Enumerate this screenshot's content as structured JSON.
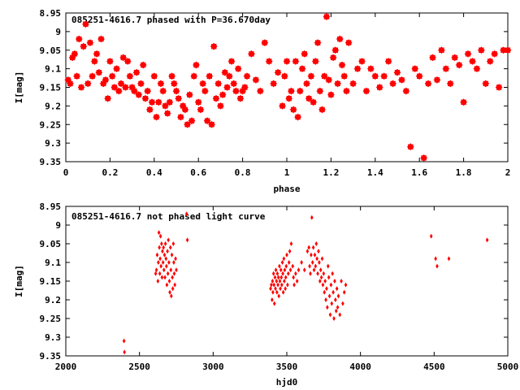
{
  "chart_data": [
    {
      "type": "scatter",
      "title": "085251-4616.7 phased with P=36.670day",
      "xlabel": "phase",
      "ylabel": "I[mag]",
      "xlim": [
        0,
        2
      ],
      "ylim": [
        8.95,
        9.35
      ],
      "y_inverted": true,
      "x_ticks": [
        "0",
        "0.2",
        "0.4",
        "0.6",
        "0.8",
        "1",
        "1.2",
        "1.4",
        "1.6",
        "1.8",
        "2"
      ],
      "y_ticks": [
        "8.95",
        "9",
        "9.05",
        "9.1",
        "9.15",
        "9.2",
        "9.25",
        "9.3",
        "9.35"
      ],
      "grid": false,
      "marker_color": "#ff0000",
      "marker": "filled-diamond",
      "series": [
        {
          "x": [
            0.01,
            0.02,
            0.03,
            0.04,
            0.05,
            0.06,
            0.07,
            0.08,
            0.09,
            0.1,
            0.11,
            0.12,
            0.13,
            0.14,
            0.15,
            0.16,
            0.17,
            0.18,
            0.19,
            0.2,
            0.21,
            0.22,
            0.23,
            0.24,
            0.25,
            0.26,
            0.27,
            0.28,
            0.29,
            0.3,
            0.31,
            0.32,
            0.33,
            0.34,
            0.35,
            0.36,
            0.37,
            0.38,
            0.39,
            0.4,
            0.41,
            0.42,
            0.43,
            0.44,
            0.45,
            0.46,
            0.47,
            0.48,
            0.49,
            0.5,
            0.51,
            0.52,
            0.53,
            0.54,
            0.55,
            0.56,
            0.57,
            0.58,
            0.59,
            0.6,
            0.61,
            0.62,
            0.63,
            0.64,
            0.65,
            0.66,
            0.67,
            0.68,
            0.69,
            0.7,
            0.71,
            0.72,
            0.73,
            0.74,
            0.75,
            0.76,
            0.77,
            0.78,
            0.79,
            0.8,
            0.81,
            0.82,
            0.84,
            0.86,
            0.88,
            0.9,
            0.92,
            0.94,
            0.96,
            0.98,
            0.99,
            1.0,
            1.01,
            1.02,
            1.03,
            1.04,
            1.05,
            1.06,
            1.07,
            1.08,
            1.09,
            1.1,
            1.11,
            1.12,
            1.13,
            1.14,
            1.15,
            1.16,
            1.17,
            1.18,
            1.19,
            1.2,
            1.21,
            1.22,
            1.23,
            1.24,
            1.25,
            1.26,
            1.27,
            1.28,
            1.3,
            1.32,
            1.34,
            1.36,
            1.38,
            1.4,
            1.42,
            1.44,
            1.46,
            1.48,
            1.5,
            1.52,
            1.54,
            1.56,
            1.58,
            1.6,
            1.62,
            1.64,
            1.66,
            1.68,
            1.7,
            1.72,
            1.74,
            1.76,
            1.78,
            1.8,
            1.82,
            1.84,
            1.86,
            1.88,
            1.9,
            1.92,
            1.94,
            1.96,
            1.98,
            2.0
          ],
          "y": [
            9.13,
            9.14,
            9.07,
            9.06,
            9.12,
            9.02,
            9.15,
            9.04,
            8.98,
            9.14,
            9.03,
            9.12,
            9.08,
            9.06,
            9.11,
            9.02,
            9.14,
            9.13,
            9.18,
            9.08,
            9.12,
            9.15,
            9.1,
            9.16,
            9.14,
            9.07,
            9.15,
            9.08,
            9.12,
            9.15,
            9.16,
            9.11,
            9.17,
            9.14,
            9.09,
            9.18,
            9.16,
            9.21,
            9.19,
            9.12,
            9.23,
            9.19,
            9.14,
            9.16,
            9.2,
            9.22,
            9.19,
            9.12,
            9.14,
            9.16,
            9.18,
            9.23,
            9.2,
            9.21,
            9.25,
            9.17,
            9.24,
            9.12,
            9.09,
            9.19,
            9.21,
            9.14,
            9.16,
            9.24,
            9.12,
            9.25,
            9.04,
            9.18,
            9.14,
            9.2,
            9.17,
            9.11,
            9.15,
            9.12,
            9.08,
            9.14,
            9.16,
            9.1,
            9.18,
            9.16,
            9.15,
            9.12,
            9.06,
            9.13,
            9.16,
            9.03,
            9.08,
            9.14,
            9.11,
            9.2,
            9.12,
            9.08,
            9.18,
            9.16,
            9.21,
            9.08,
            9.23,
            9.16,
            9.1,
            9.06,
            9.14,
            9.18,
            9.12,
            9.19,
            9.08,
            9.03,
            9.16,
            9.21,
            9.12,
            8.96,
            9.13,
            9.17,
            9.07,
            9.05,
            9.14,
            9.02,
            9.09,
            9.12,
            9.16,
            9.03,
            9.14,
            9.1,
            9.08,
            9.16,
            9.1,
            9.12,
            9.15,
            9.12,
            9.08,
            9.14,
            9.11,
            9.13,
            9.16,
            9.31,
            9.1,
            9.12,
            9.34,
            9.14,
            9.07,
            9.13,
            9.05,
            9.1,
            9.14,
            9.07,
            9.09,
            9.19,
            9.06,
            9.08,
            9.1,
            9.05,
            9.14,
            9.08,
            9.06,
            9.15,
            9.05,
            9.05
          ]
        }
      ]
    },
    {
      "type": "scatter",
      "title": "085251-4616.7 not phased light curve",
      "xlabel": "hjd0",
      "ylabel": "I[mag]",
      "xlim": [
        2000,
        5000
      ],
      "ylim": [
        8.95,
        9.35
      ],
      "y_inverted": true,
      "x_ticks": [
        "2000",
        "2500",
        "3000",
        "3500",
        "4000",
        "4500",
        "5000"
      ],
      "y_ticks": [
        "8.95",
        "9",
        "9.05",
        "9.1",
        "9.15",
        "9.2",
        "9.25",
        "9.3",
        "9.35"
      ],
      "grid": false,
      "marker_color": "#ff0000",
      "marker": "small-diamond",
      "series": [
        {
          "x": [
            2395,
            2398,
            2610,
            2615,
            2620,
            2625,
            2628,
            2632,
            2635,
            2638,
            2640,
            2643,
            2646,
            2650,
            2653,
            2656,
            2660,
            2663,
            2666,
            2670,
            2673,
            2676,
            2680,
            2683,
            2686,
            2690,
            2693,
            2696,
            2700,
            2703,
            2706,
            2710,
            2713,
            2716,
            2720,
            2723,
            2726,
            2730,
            2733,
            2736,
            2740,
            2745,
            2750,
            2820,
            2825,
            3390,
            3395,
            3400,
            3403,
            3406,
            3410,
            3413,
            3416,
            3420,
            3423,
            3426,
            3430,
            3433,
            3436,
            3440,
            3443,
            3446,
            3450,
            3453,
            3456,
            3460,
            3463,
            3466,
            3470,
            3473,
            3476,
            3480,
            3483,
            3486,
            3490,
            3493,
            3496,
            3500,
            3505,
            3510,
            3515,
            3520,
            3525,
            3530,
            3540,
            3545,
            3550,
            3560,
            3570,
            3580,
            3600,
            3620,
            3640,
            3650,
            3655,
            3660,
            3665,
            3670,
            3675,
            3680,
            3685,
            3690,
            3695,
            3700,
            3705,
            3710,
            3715,
            3720,
            3725,
            3730,
            3735,
            3740,
            3745,
            3750,
            3755,
            3760,
            3765,
            3770,
            3775,
            3780,
            3785,
            3790,
            3795,
            3800,
            3805,
            3810,
            3815,
            3820,
            3825,
            3830,
            3835,
            3840,
            3845,
            3850,
            3860,
            3870,
            3880,
            3890,
            3900,
            4480,
            4510,
            4520,
            4600,
            4860
          ],
          "y": [
            9.31,
            9.34,
            9.13,
            9.12,
            9.08,
            9.15,
            9.1,
            9.02,
            9.06,
            9.13,
            9.09,
            9.03,
            9.11,
            9.05,
            9.14,
            9.07,
            9.1,
            9.06,
            9.12,
            9.08,
            9.14,
            9.05,
            9.09,
            9.11,
            9.16,
            9.07,
            9.13,
            9.04,
            9.1,
            9.15,
            9.18,
            9.06,
            9.12,
            9.19,
            9.08,
            9.14,
            9.17,
            9.05,
            9.1,
            9.13,
            9.16,
            9.09,
            9.12,
            8.97,
            9.04,
            9.17,
            9.16,
            9.2,
            9.15,
            9.18,
            9.13,
            9.16,
            9.21,
            9.14,
            9.17,
            9.12,
            9.15,
            9.18,
            9.13,
            9.16,
            9.14,
            9.19,
            9.11,
            9.15,
            9.17,
            9.12,
            9.14,
            9.16,
            9.1,
            9.13,
            9.18,
            9.09,
            9.15,
            9.12,
            9.17,
            9.14,
            9.11,
            9.08,
            9.16,
            9.13,
            9.1,
            9.07,
            9.12,
            9.05,
            9.11,
            9.14,
            9.16,
            9.13,
            9.15,
            9.12,
            9.1,
            9.12,
            9.07,
            9.06,
            9.11,
            9.13,
            9.08,
            8.98,
            9.1,
            9.06,
            9.12,
            9.08,
            9.11,
            9.05,
            9.09,
            9.13,
            9.07,
            9.1,
            9.15,
            9.12,
            9.14,
            9.09,
            9.16,
            9.13,
            9.18,
            9.15,
            9.2,
            9.17,
            9.22,
            9.11,
            9.14,
            9.19,
            9.24,
            9.16,
            9.21,
            9.13,
            9.18,
            9.25,
            9.15,
            9.2,
            9.23,
            9.17,
            9.22,
            9.19,
            9.24,
            9.15,
            9.21,
            9.18,
            9.16,
            9.03,
            9.09,
            9.11,
            9.09,
            9.04
          ]
        }
      ]
    }
  ]
}
